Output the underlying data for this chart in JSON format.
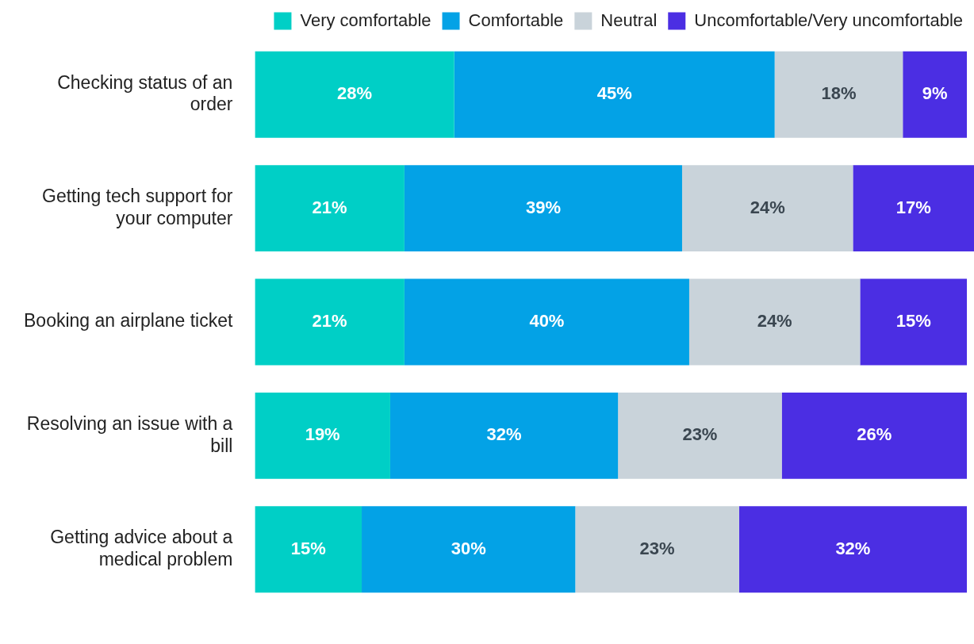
{
  "chart_data": {
    "type": "bar",
    "orientation": "horizontal",
    "stacked": true,
    "legend": "top",
    "grid": false,
    "tick_labels": "y",
    "categories": [
      "Checking status of an order",
      "Getting tech support for your computer",
      "Booking an airplane ticket",
      "Resolving an issue with a bill",
      "Getting advice about a medical problem"
    ],
    "series": [
      {
        "name": "Very comfortable",
        "color": "#00cfc6",
        "values": [
          28,
          21,
          21,
          19,
          15
        ],
        "value_labels": [
          "28%",
          "21%",
          "21%",
          "19%",
          "15%"
        ]
      },
      {
        "name": "Comfortable",
        "color": "#03a2e6",
        "values": [
          45,
          39,
          40,
          32,
          30
        ],
        "value_labels": [
          "45%",
          "39%",
          "40%",
          "32%",
          "30%"
        ]
      },
      {
        "name": "Neutral",
        "color": "#c9d3da",
        "values": [
          18,
          24,
          24,
          23,
          23
        ],
        "value_labels": [
          "18%",
          "24%",
          "24%",
          "23%",
          "23%"
        ]
      },
      {
        "name": "Uncomfortable/Very uncomfortable",
        "color": "#4b2ee3",
        "values": [
          9,
          17,
          15,
          26,
          32
        ],
        "value_labels": [
          "9%",
          "17%",
          "15%",
          "26%",
          "32%"
        ]
      }
    ]
  }
}
